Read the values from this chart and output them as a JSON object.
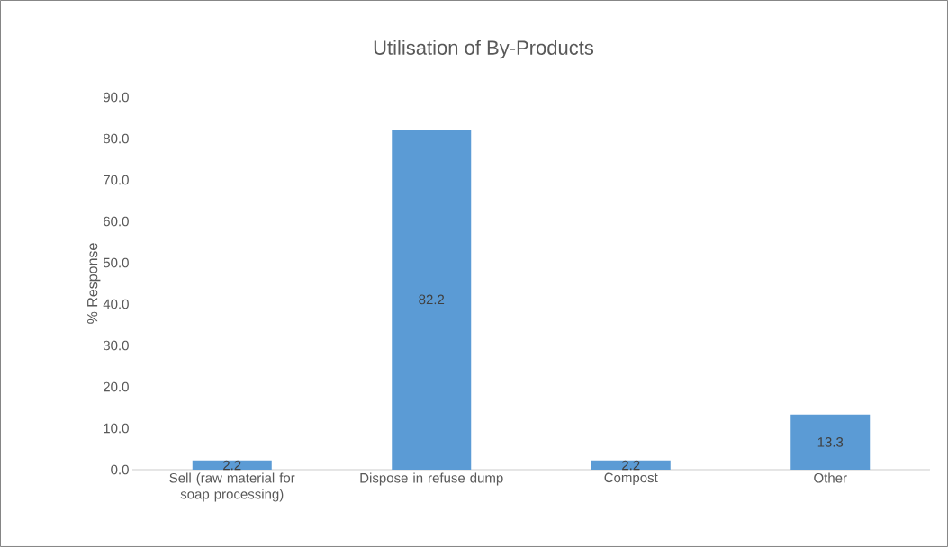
{
  "chart_data": {
    "type": "bar",
    "title": "Utilisation of By-Products",
    "ylabel": "% Response",
    "categories": [
      "Sell (raw material for soap processing)",
      "Dispose in refuse dump",
      "Compost",
      "Other"
    ],
    "values": [
      2.2,
      82.2,
      2.2,
      13.3
    ],
    "color": "#5b9bd5",
    "data_labels": true,
    "ylim": [
      0,
      90
    ],
    "yticks": [
      {
        "value": 0,
        "label": "0.0"
      },
      {
        "value": 10,
        "label": "10.0"
      },
      {
        "value": 20,
        "label": "20.0"
      },
      {
        "value": 30,
        "label": "30.0"
      },
      {
        "value": 40,
        "label": "40.0"
      },
      {
        "value": 50,
        "label": "50.0"
      },
      {
        "value": 60,
        "label": "60.0"
      },
      {
        "value": 70,
        "label": "70.0"
      },
      {
        "value": 80,
        "label": "80.0"
      },
      {
        "value": 90,
        "label": "90.0"
      }
    ],
    "grid": false
  }
}
